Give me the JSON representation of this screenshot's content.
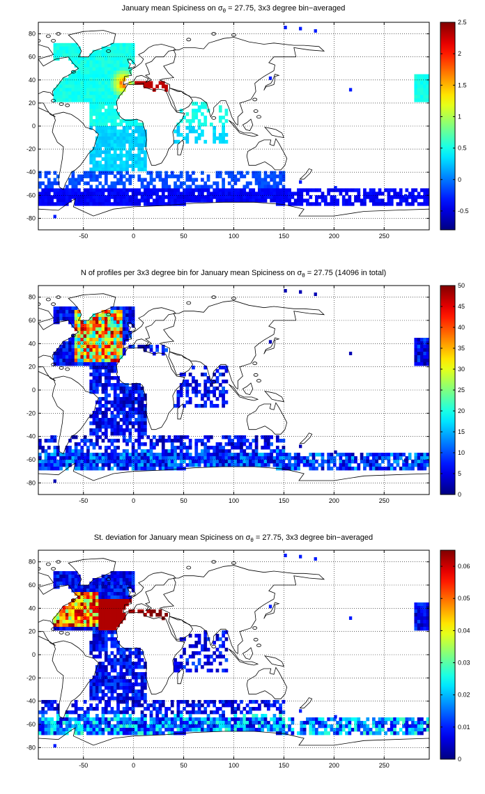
{
  "chart_data": [
    {
      "type": "heatmap",
      "title_prefix": "January mean Spiciness on ",
      "title_sigma": "σ",
      "title_sub": "θ",
      "title_suffix": " = 27.75, 3x3 degree bin−averaged",
      "x_ticks": [
        "-50",
        "0",
        "50",
        "100",
        "150",
        "200",
        "250"
      ],
      "x_tick_values": [
        -50,
        0,
        50,
        100,
        150,
        200,
        250
      ],
      "y_ticks": [
        "80",
        "60",
        "40",
        "20",
        "0",
        "-20",
        "-40",
        "-60",
        "-80"
      ],
      "y_tick_values": [
        80,
        60,
        40,
        20,
        0,
        -20,
        -40,
        -60,
        -80
      ],
      "xlim": [
        -95,
        295
      ],
      "ylim": [
        -90,
        90
      ],
      "grid": true,
      "colormap": "jet",
      "colorbar": {
        "min": -0.8,
        "max": 2.5,
        "ticks": [
          "2.5",
          "2",
          "1.5",
          "1",
          "0.5",
          "0",
          "-0.5"
        ],
        "tick_values": [
          2.5,
          2,
          1.5,
          1,
          0.5,
          0,
          -0.5
        ]
      },
      "field": "spiciness"
    },
    {
      "type": "heatmap",
      "title_prefix": "N of profiles per 3x3 degree bin for January mean Spiciness on ",
      "title_sigma": "σ",
      "title_sub": "θ",
      "title_suffix": " = 27.75 (14096 in total)",
      "x_ticks": [
        "-50",
        "0",
        "50",
        "100",
        "150",
        "200",
        "250"
      ],
      "x_tick_values": [
        -50,
        0,
        50,
        100,
        150,
        200,
        250
      ],
      "y_ticks": [
        "80",
        "60",
        "40",
        "20",
        "0",
        "-20",
        "-40",
        "-60",
        "-80"
      ],
      "y_tick_values": [
        80,
        60,
        40,
        20,
        0,
        -20,
        -40,
        -60,
        -80
      ],
      "xlim": [
        -95,
        295
      ],
      "ylim": [
        -90,
        90
      ],
      "grid": true,
      "colormap": "jet",
      "colorbar": {
        "min": 0,
        "max": 50,
        "ticks": [
          "50",
          "45",
          "40",
          "35",
          "30",
          "25",
          "20",
          "15",
          "10",
          "5",
          "0"
        ],
        "tick_values": [
          50,
          45,
          40,
          35,
          30,
          25,
          20,
          15,
          10,
          5,
          0
        ]
      },
      "field": "count"
    },
    {
      "type": "heatmap",
      "title_prefix": "St. deviation for January mean Spiciness on ",
      "title_sigma": "σ",
      "title_sub": "θ",
      "title_suffix": " = 27.75, 3x3 degree bin−averaged",
      "x_ticks": [
        "-50",
        "0",
        "50",
        "100",
        "150",
        "200",
        "250"
      ],
      "x_tick_values": [
        -50,
        0,
        50,
        100,
        150,
        200,
        250
      ],
      "y_ticks": [
        "80",
        "60",
        "40",
        "20",
        "0",
        "-20",
        "-40",
        "-60",
        "-80"
      ],
      "y_tick_values": [
        80,
        60,
        40,
        20,
        0,
        -20,
        -40,
        -60,
        -80
      ],
      "xlim": [
        -95,
        295
      ],
      "ylim": [
        -90,
        90
      ],
      "grid": true,
      "colormap": "jet",
      "colorbar": {
        "min": 0,
        "max": 0.065,
        "ticks": [
          "0.06",
          "0.05",
          "0.04",
          "0.03",
          "0.02",
          "0.01",
          "0"
        ],
        "tick_values": [
          0.06,
          0.05,
          0.04,
          0.03,
          0.02,
          0.01,
          0
        ]
      },
      "field": "std"
    }
  ]
}
